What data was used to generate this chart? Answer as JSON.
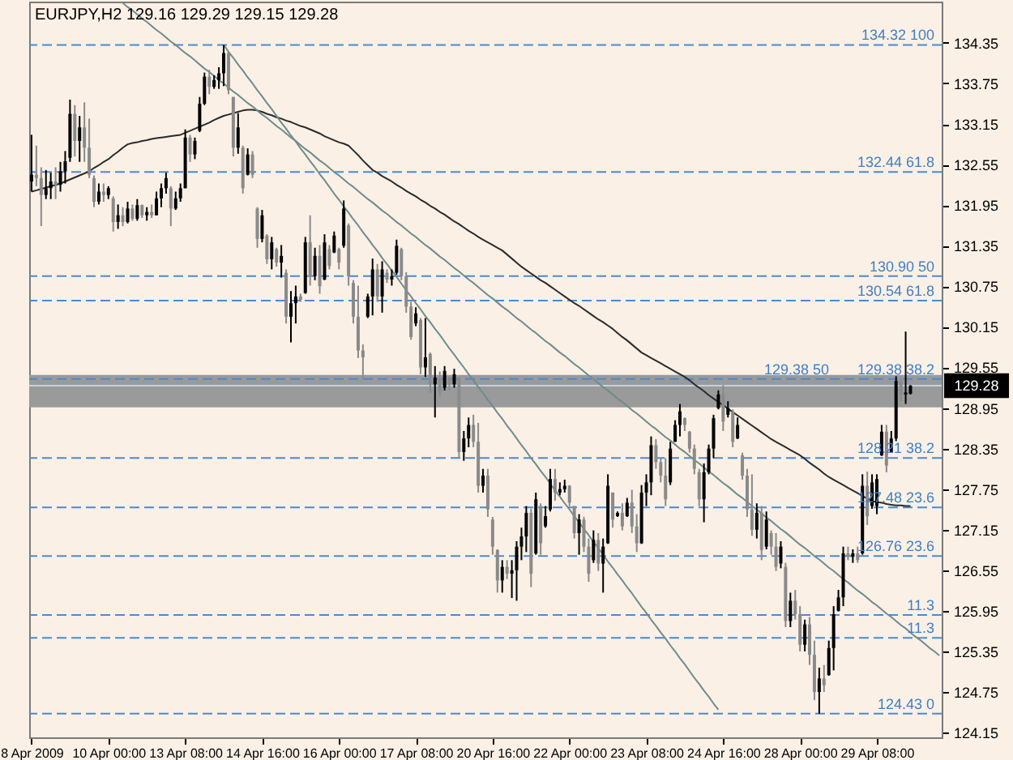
{
  "chart_data": {
    "type": "candlestick",
    "title": "EURJPY,H2 129.16 129.29 129.15 129.28",
    "categories": [
      "8 Apr 2009",
      null,
      null,
      null,
      null,
      null,
      null,
      null,
      null,
      null,
      null,
      null,
      null,
      null,
      null,
      null,
      "10 Apr 00:00",
      null,
      null,
      null,
      null,
      null,
      null,
      null,
      null,
      null,
      null,
      null,
      null,
      null,
      null,
      null,
      "13 Apr 08:00",
      null,
      null,
      null,
      null,
      null,
      null,
      null,
      null,
      null,
      null,
      null,
      null,
      null,
      null,
      null,
      "14 Apr 16:00",
      null,
      null,
      null,
      null,
      null,
      null,
      null,
      null,
      null,
      null,
      null,
      null,
      null,
      null,
      null,
      "16 Apr 00:00",
      null,
      null,
      null,
      null,
      null,
      null,
      null,
      null,
      null,
      null,
      null,
      null,
      null,
      null,
      null,
      "17 Apr 08:00",
      null,
      null,
      null,
      null,
      null,
      null,
      null,
      null,
      null,
      null,
      null,
      null,
      null,
      null,
      null,
      "20 Apr 16:00",
      null,
      null,
      null,
      null,
      null,
      null,
      null,
      null,
      null,
      null,
      null,
      null,
      null,
      null,
      null,
      "22 Apr 00:00",
      null,
      null,
      null,
      null,
      null,
      null,
      null,
      null,
      null,
      null,
      null,
      null,
      null,
      null,
      null,
      "23 Apr 08:00",
      null,
      null,
      null,
      null,
      null,
      null,
      null,
      null,
      null,
      null,
      null,
      null,
      null,
      null,
      null,
      "24 Apr 16:00",
      null,
      null,
      null,
      null,
      null,
      null,
      null,
      null,
      null,
      null,
      null,
      null,
      null,
      null,
      null,
      "28 Apr 00:00",
      null,
      null,
      null,
      null,
      null,
      null,
      null,
      null,
      null,
      null,
      null,
      null,
      null,
      null,
      null,
      "29 Apr 08:00",
      null,
      null,
      null,
      null,
      null,
      null,
      null,
      null,
      null,
      null,
      null,
      null,
      null
    ],
    "ohlc": [
      [
        132.3,
        132.99,
        132.15,
        132.4
      ],
      [
        132.4,
        132.83,
        132.23,
        132.35
      ],
      [
        132.35,
        132.51,
        131.64,
        132.1
      ],
      [
        132.1,
        132.47,
        132.04,
        132.2
      ],
      [
        132.2,
        132.43,
        132.04,
        132.3
      ],
      [
        132.3,
        132.51,
        132.04,
        132.25
      ],
      [
        132.25,
        132.59,
        132.15,
        132.45
      ],
      [
        132.45,
        132.75,
        132.27,
        132.6
      ],
      [
        132.65,
        133.51,
        132.59,
        133.3
      ],
      [
        133.3,
        133.43,
        132.67,
        132.9
      ],
      [
        132.9,
        133.27,
        132.59,
        133.1
      ],
      [
        133.1,
        133.47,
        132.59,
        132.8
      ],
      [
        132.8,
        133.23,
        132.35,
        132.4
      ],
      [
        132.35,
        132.39,
        131.92,
        132.0
      ],
      [
        132.0,
        132.27,
        131.96,
        132.15
      ],
      [
        132.15,
        132.27,
        132.0,
        132.1
      ],
      [
        132.1,
        132.23,
        132.04,
        132.2
      ],
      [
        132.05,
        132.08,
        131.56,
        131.7
      ],
      [
        131.7,
        131.96,
        131.6,
        131.8
      ],
      [
        131.8,
        131.92,
        131.64,
        131.7
      ],
      [
        131.7,
        132.0,
        131.68,
        131.9
      ],
      [
        131.9,
        131.96,
        131.72,
        131.75
      ],
      [
        131.75,
        132.04,
        131.72,
        131.95
      ],
      [
        131.95,
        131.96,
        131.76,
        131.8
      ],
      [
        131.8,
        131.92,
        131.72,
        131.85
      ],
      [
        131.85,
        131.96,
        131.76,
        131.8
      ],
      [
        131.8,
        132.15,
        131.8,
        132.05
      ],
      [
        132.05,
        132.27,
        131.92,
        132.2
      ],
      [
        132.2,
        132.43,
        132.12,
        132.35
      ],
      [
        132.2,
        132.23,
        131.64,
        131.9
      ],
      [
        131.9,
        132.15,
        131.88,
        132.05
      ],
      [
        132.05,
        132.27,
        132.0,
        132.2
      ],
      [
        132.2,
        133.07,
        132.2,
        132.95
      ],
      [
        132.95,
        132.99,
        132.59,
        132.7
      ],
      [
        132.7,
        132.95,
        132.63,
        132.9
      ],
      [
        133.05,
        133.55,
        133.03,
        133.45
      ],
      [
        133.45,
        133.91,
        133.43,
        133.85
      ],
      [
        133.85,
        133.95,
        133.59,
        133.7
      ],
      [
        133.7,
        133.87,
        133.67,
        133.8
      ],
      [
        133.8,
        133.99,
        133.67,
        133.9
      ],
      [
        133.9,
        134.32,
        133.71,
        134.2
      ],
      [
        134.2,
        134.22,
        133.59,
        133.65
      ],
      [
        133.55,
        133.55,
        132.67,
        132.8
      ],
      [
        132.8,
        133.31,
        132.71,
        133.1
      ],
      [
        132.8,
        132.83,
        132.12,
        132.2
      ],
      [
        132.4,
        132.79,
        132.39,
        132.7
      ],
      [
        132.7,
        132.75,
        132.35,
        132.4
      ],
      [
        131.9,
        131.92,
        131.32,
        131.45
      ],
      [
        131.45,
        131.88,
        131.4,
        131.8
      ],
      [
        131.5,
        131.52,
        131.08,
        131.15
      ],
      [
        131.15,
        131.48,
        131.0,
        131.4
      ],
      [
        131.3,
        131.32,
        131.04,
        131.1
      ],
      [
        131.1,
        131.36,
        130.88,
        131.2
      ],
      [
        130.95,
        131.0,
        130.2,
        130.3
      ],
      [
        130.3,
        130.68,
        129.92,
        130.5
      ],
      [
        130.5,
        130.76,
        130.2,
        130.6
      ],
      [
        130.6,
        130.64,
        130.52,
        130.55
      ],
      [
        130.65,
        131.48,
        130.64,
        131.4
      ],
      [
        131.4,
        131.8,
        130.76,
        130.9
      ],
      [
        130.9,
        131.32,
        130.84,
        131.2
      ],
      [
        131.2,
        131.36,
        130.64,
        130.75
      ],
      [
        130.85,
        131.52,
        130.84,
        131.4
      ],
      [
        131.3,
        131.36,
        131.0,
        131.05
      ],
      [
        131.25,
        131.56,
        131.24,
        131.5
      ],
      [
        131.3,
        131.32,
        131.0,
        131.1
      ],
      [
        131.35,
        132.02,
        131.32,
        131.9
      ],
      [
        131.65,
        131.68,
        130.76,
        130.9
      ],
      [
        130.8,
        130.84,
        130.2,
        130.3
      ],
      [
        130.3,
        130.76,
        129.69,
        129.8
      ],
      [
        129.8,
        129.89,
        129.37,
        129.7
      ],
      [
        130.3,
        130.64,
        130.28,
        130.6
      ],
      [
        130.6,
        131.16,
        130.32,
        131.0
      ],
      [
        131.0,
        131.08,
        130.52,
        130.6
      ],
      [
        130.6,
        131.12,
        130.36,
        131.0
      ],
      [
        130.95,
        131.0,
        130.8,
        130.85
      ],
      [
        130.85,
        131.0,
        130.76,
        130.9
      ],
      [
        130.95,
        131.44,
        130.92,
        131.35
      ],
      [
        131.3,
        131.32,
        130.84,
        130.9
      ],
      [
        130.9,
        130.96,
        130.36,
        130.45
      ],
      [
        130.45,
        130.52,
        129.96,
        130.0
      ],
      [
        130.2,
        130.44,
        130.16,
        130.35
      ],
      [
        130.25,
        130.28,
        129.45,
        129.55
      ],
      [
        129.55,
        130.28,
        129.41,
        129.7
      ],
      [
        129.75,
        129.77,
        129.17,
        129.3
      ],
      [
        129.3,
        129.57,
        128.81,
        129.4
      ],
      [
        129.4,
        129.49,
        129.13,
        129.2
      ],
      [
        129.25,
        129.57,
        129.21,
        129.5
      ],
      [
        129.4,
        129.41,
        129.21,
        129.3
      ],
      [
        129.3,
        129.53,
        129.25,
        129.45
      ],
      [
        129.4,
        129.41,
        128.21,
        128.3
      ],
      [
        128.3,
        128.61,
        128.17,
        128.5
      ],
      [
        128.5,
        128.81,
        128.37,
        128.7
      ],
      [
        128.7,
        128.85,
        128.37,
        128.45
      ],
      [
        128.45,
        128.73,
        127.7,
        127.8
      ],
      [
        127.8,
        128.05,
        127.7,
        127.95
      ],
      [
        127.95,
        128.05,
        127.34,
        127.45
      ],
      [
        127.3,
        127.34,
        126.78,
        126.9
      ],
      [
        126.85,
        126.86,
        126.22,
        126.4
      ],
      [
        126.4,
        126.7,
        126.22,
        126.6
      ],
      [
        126.6,
        126.7,
        126.42,
        126.5
      ],
      [
        126.5,
        126.7,
        126.14,
        126.55
      ],
      [
        126.55,
        126.98,
        126.1,
        126.9
      ],
      [
        126.9,
        127.18,
        126.7,
        127.05
      ],
      [
        127.05,
        127.5,
        126.82,
        127.4
      ],
      [
        127.4,
        127.46,
        126.3,
        126.5
      ],
      [
        126.8,
        127.7,
        126.78,
        127.6
      ],
      [
        127.5,
        127.54,
        126.78,
        126.95
      ],
      [
        127.2,
        127.5,
        127.18,
        127.35
      ],
      [
        127.45,
        128.05,
        127.42,
        127.9
      ],
      [
        127.9,
        128.05,
        127.58,
        127.7
      ],
      [
        127.7,
        127.85,
        127.66,
        127.75
      ],
      [
        127.75,
        127.89,
        127.7,
        127.8
      ],
      [
        127.8,
        127.81,
        127.5,
        127.55
      ],
      [
        127.5,
        127.5,
        127.02,
        127.1
      ],
      [
        127.1,
        127.38,
        126.78,
        127.3
      ],
      [
        127.3,
        127.34,
        126.82,
        126.9
      ],
      [
        126.9,
        127.02,
        126.38,
        126.5
      ],
      [
        126.7,
        127.14,
        126.66,
        127.0
      ],
      [
        127.0,
        127.1,
        126.54,
        126.65
      ],
      [
        126.65,
        127.02,
        126.22,
        126.9
      ],
      [
        126.95,
        127.97,
        126.94,
        127.8
      ],
      [
        127.7,
        127.7,
        127.18,
        127.3
      ],
      [
        127.35,
        127.42,
        127.34,
        127.4
      ],
      [
        127.4,
        127.54,
        127.14,
        127.2
      ],
      [
        127.35,
        127.62,
        127.34,
        127.55
      ],
      [
        127.55,
        127.74,
        127.1,
        127.2
      ],
      [
        127.2,
        127.38,
        126.82,
        126.95
      ],
      [
        126.95,
        127.81,
        126.94,
        127.7
      ],
      [
        127.7,
        127.97,
        127.5,
        127.85
      ],
      [
        127.85,
        128.53,
        127.66,
        128.4
      ],
      [
        128.4,
        128.49,
        128.05,
        128.15
      ],
      [
        128.15,
        128.21,
        127.85,
        127.95
      ],
      [
        127.95,
        128.21,
        127.5,
        127.6
      ],
      [
        127.85,
        128.45,
        127.81,
        128.35
      ],
      [
        128.45,
        128.77,
        128.45,
        128.7
      ],
      [
        128.7,
        129.01,
        128.53,
        128.9
      ],
      [
        128.8,
        128.81,
        128.61,
        128.7
      ],
      [
        128.6,
        128.61,
        128.29,
        128.35
      ],
      [
        128.35,
        128.41,
        127.97,
        128.05
      ],
      [
        128.0,
        128.05,
        127.5,
        127.6
      ],
      [
        127.6,
        128.13,
        127.26,
        128.0
      ],
      [
        128.0,
        128.41,
        127.97,
        128.35
      ],
      [
        128.35,
        128.85,
        128.21,
        128.8
      ],
      [
        128.95,
        129.21,
        128.93,
        129.15
      ],
      [
        129.15,
        129.29,
        128.61,
        128.75
      ],
      [
        128.85,
        129.05,
        128.81,
        128.95
      ],
      [
        128.9,
        128.93,
        128.37,
        128.45
      ],
      [
        128.5,
        128.81,
        128.49,
        128.7
      ],
      [
        128.25,
        128.29,
        127.89,
        127.95
      ],
      [
        127.95,
        128.05,
        127.34,
        127.45
      ],
      [
        127.45,
        127.97,
        127.06,
        127.15
      ],
      [
        127.15,
        127.54,
        127.02,
        127.4
      ],
      [
        127.4,
        127.5,
        126.7,
        126.85
      ],
      [
        126.9,
        127.42,
        126.86,
        127.3
      ],
      [
        127.1,
        127.14,
        126.78,
        126.9
      ],
      [
        126.9,
        127.1,
        126.54,
        126.6
      ],
      [
        126.65,
        126.98,
        126.58,
        126.9
      ],
      [
        126.6,
        126.66,
        125.71,
        125.8
      ],
      [
        125.8,
        126.22,
        125.71,
        126.1
      ],
      [
        126.1,
        126.26,
        125.82,
        125.9
      ],
      [
        125.9,
        126.02,
        125.35,
        125.45
      ],
      [
        125.45,
        125.82,
        125.35,
        125.75
      ],
      [
        125.75,
        125.86,
        125.15,
        125.3
      ],
      [
        125.3,
        125.51,
        124.63,
        124.75
      ],
      [
        124.75,
        125.11,
        124.43,
        124.95
      ],
      [
        124.95,
        125.15,
        124.75,
        124.85
      ],
      [
        125.0,
        125.51,
        124.99,
        125.4
      ],
      [
        125.4,
        126.02,
        125.07,
        125.9
      ],
      [
        125.95,
        126.26,
        125.94,
        126.15
      ],
      [
        126.15,
        126.9,
        126.02,
        126.8
      ],
      [
        126.8,
        126.9,
        126.7,
        126.75
      ],
      [
        126.75,
        126.86,
        126.66,
        126.8
      ],
      [
        126.8,
        126.9,
        126.66,
        126.7
      ],
      [
        126.8,
        127.97,
        126.78,
        127.8
      ],
      [
        127.8,
        128.01,
        127.22,
        127.35
      ],
      [
        127.5,
        127.97,
        127.46,
        127.85
      ],
      [
        127.5,
        127.97,
        127.38,
        127.9
      ],
      [
        128.25,
        128.7,
        128.24,
        128.6
      ],
      [
        128.6,
        128.7,
        128.0,
        128.1
      ],
      [
        128.3,
        128.61,
        128.29,
        128.5
      ],
      [
        128.5,
        129.42,
        128.46,
        129.35
      ],
      [
        129.35,
        129.41,
        129.05,
        129.15
      ],
      [
        129.15,
        130.08,
        129.01,
        129.18
      ],
      [
        129.16,
        129.29,
        129.15,
        129.28
      ],
      null,
      null,
      null,
      null,
      null,
      null
    ],
    "colors": [
      "#000000",
      "#8a8a8a",
      "#8a8a8a",
      "#000000",
      "#000000",
      "#8a8a8a",
      "#000000",
      "#000000",
      "#000000",
      "#8a8a8a",
      "#000000",
      "#8a8a8a",
      "#8a8a8a",
      "#8a8a8a",
      "#000000",
      "#8a8a8a",
      "#000000",
      "#8a8a8a",
      "#000000",
      "#8a8a8a",
      "#000000",
      "#8a8a8a",
      "#000000",
      "#8a8a8a",
      "#000000",
      "#8a8a8a",
      "#000000",
      "#000000",
      "#000000",
      "#8a8a8a",
      "#000000",
      "#000000",
      "#000000",
      "#8a8a8a",
      "#000000",
      "#000000",
      "#000000",
      "#8a8a8a",
      "#000000",
      "#000000",
      "#000000",
      "#8a8a8a",
      "#8a8a8a",
      "#000000",
      "#8a8a8a",
      "#000000",
      "#8a8a8a",
      "#8a8a8a",
      "#000000",
      "#8a8a8a",
      "#000000",
      "#8a8a8a",
      "#000000",
      "#8a8a8a",
      "#000000",
      "#000000",
      "#8a8a8a",
      "#000000",
      "#8a8a8a",
      "#000000",
      "#8a8a8a",
      "#000000",
      "#8a8a8a",
      "#000000",
      "#8a8a8a",
      "#000000",
      "#8a8a8a",
      "#8a8a8a",
      "#8a8a8a",
      "#8a8a8a",
      "#000000",
      "#000000",
      "#8a8a8a",
      "#000000",
      "#8a8a8a",
      "#000000",
      "#000000",
      "#8a8a8a",
      "#8a8a8a",
      "#8a8a8a",
      "#000000",
      "#8a8a8a",
      "#000000",
      "#8a8a8a",
      "#000000",
      "#8a8a8a",
      "#000000",
      "#8a8a8a",
      "#000000",
      "#8a8a8a",
      "#000000",
      "#000000",
      "#8a8a8a",
      "#8a8a8a",
      "#000000",
      "#8a8a8a",
      "#8a8a8a",
      "#8a8a8a",
      "#000000",
      "#8a8a8a",
      "#000000",
      "#000000",
      "#000000",
      "#000000",
      "#8a8a8a",
      "#000000",
      "#8a8a8a",
      "#000000",
      "#000000",
      "#8a8a8a",
      "#000000",
      "#000000",
      "#8a8a8a",
      "#8a8a8a",
      "#000000",
      "#8a8a8a",
      "#8a8a8a",
      "#000000",
      "#8a8a8a",
      "#000000",
      "#000000",
      "#8a8a8a",
      "#000000",
      "#8a8a8a",
      "#000000",
      "#8a8a8a",
      "#8a8a8a",
      "#000000",
      "#000000",
      "#000000",
      "#8a8a8a",
      "#8a8a8a",
      "#8a8a8a",
      "#000000",
      "#000000",
      "#000000",
      "#8a8a8a",
      "#8a8a8a",
      "#8a8a8a",
      "#8a8a8a",
      "#000000",
      "#000000",
      "#000000",
      "#000000",
      "#8a8a8a",
      "#000000",
      "#8a8a8a",
      "#000000",
      "#8a8a8a",
      "#8a8a8a",
      "#8a8a8a",
      "#000000",
      "#8a8a8a",
      "#000000",
      "#8a8a8a",
      "#8a8a8a",
      "#000000",
      "#8a8a8a",
      "#000000",
      "#8a8a8a",
      "#8a8a8a",
      "#000000",
      "#8a8a8a",
      "#8a8a8a",
      "#000000",
      "#8a8a8a",
      "#000000",
      "#000000",
      "#000000",
      "#000000",
      "#8a8a8a",
      "#000000",
      "#8a8a8a",
      "#000000",
      "#8a8a8a",
      "#000000",
      "#000000",
      "#000000",
      "#8a8a8a",
      "#000000",
      "#000000",
      "#8a8a8a",
      "#000000",
      "#000000",
      null,
      null,
      null,
      null,
      null,
      null
    ],
    "series": [
      {
        "type": "line",
        "color": "#2b2b2b",
        "values": [
          132.15,
          132.17,
          132.19,
          132.21,
          132.23,
          132.25,
          132.27,
          132.3,
          132.33,
          132.36,
          132.39,
          132.42,
          132.45,
          132.5,
          132.54,
          132.59,
          132.63,
          132.69,
          132.74,
          132.8,
          132.85,
          132.87,
          132.88,
          132.9,
          132.91,
          132.93,
          132.94,
          132.95,
          132.96,
          132.97,
          132.98,
          132.99,
          133.02,
          133.05,
          133.08,
          133.11,
          133.14,
          133.17,
          133.21,
          133.24,
          133.27,
          133.29,
          133.31,
          133.33,
          133.35,
          133.36,
          133.36,
          133.35,
          133.33,
          133.3,
          133.28,
          133.25,
          133.23,
          133.2,
          133.18,
          133.15,
          133.12,
          133.1,
          133.07,
          133.04,
          133.01,
          132.97,
          132.94,
          132.91,
          132.88,
          132.86,
          132.83,
          132.76,
          132.69,
          132.61,
          132.54,
          132.47,
          132.43,
          132.38,
          132.34,
          132.3,
          132.25,
          132.21,
          132.16,
          132.12,
          132.08,
          132.03,
          131.99,
          131.94,
          131.9,
          131.85,
          131.81,
          131.76,
          131.71,
          131.67,
          131.62,
          131.57,
          131.53,
          131.48,
          131.44,
          131.4,
          131.36,
          131.32,
          131.28,
          131.22,
          131.16,
          131.1,
          131.04,
          130.99,
          130.94,
          130.89,
          130.84,
          130.8,
          130.75,
          130.7,
          130.65,
          130.6,
          130.55,
          130.5,
          130.46,
          130.41,
          130.36,
          130.31,
          130.26,
          130.22,
          130.17,
          130.12,
          130.06,
          130.0,
          129.95,
          129.89,
          129.83,
          129.77,
          129.73,
          129.69,
          129.65,
          129.61,
          129.57,
          129.53,
          129.49,
          129.45,
          129.41,
          129.36,
          129.3,
          129.25,
          129.2,
          129.14,
          129.09,
          129.04,
          128.99,
          128.94,
          128.89,
          128.84,
          128.79,
          128.74,
          128.69,
          128.64,
          128.59,
          128.54,
          128.49,
          128.45,
          128.41,
          128.37,
          128.33,
          128.29,
          128.25,
          128.2,
          128.14,
          128.09,
          128.04,
          127.98,
          127.93,
          127.89,
          127.85,
          127.81,
          127.77,
          127.73,
          127.69,
          127.65,
          127.61,
          127.57,
          127.56,
          127.55,
          127.53,
          127.52,
          127.51,
          127.51,
          127.5,
          127.5,
          null,
          null,
          null,
          null,
          null,
          null
        ]
      },
      {
        "type": "line",
        "color": "#6f8c8c",
        "values": [
          null,
          null,
          null,
          null,
          null,
          null,
          null,
          null,
          null,
          null,
          null,
          null,
          null,
          null,
          null,
          null,
          null,
          null,
          null,
          null,
          null,
          null,
          null,
          null,
          null,
          null,
          null,
          null,
          null,
          null,
          null,
          null,
          null,
          null,
          null,
          null,
          null,
          null,
          null,
          null,
          134.32,
          134.22,
          134.13,
          134.03,
          133.94,
          133.84,
          133.75,
          133.65,
          133.56,
          133.46,
          133.37,
          133.27,
          133.17,
          133.08,
          132.98,
          132.89,
          132.79,
          132.7,
          132.6,
          132.51,
          132.41,
          132.32,
          132.22,
          132.12,
          132.03,
          131.93,
          131.84,
          131.74,
          131.65,
          131.55,
          131.46,
          131.36,
          131.27,
          131.17,
          131.08,
          130.98,
          130.89,
          130.79,
          130.69,
          130.6,
          130.5,
          130.41,
          130.31,
          130.22,
          130.12,
          130.03,
          129.93,
          129.83,
          129.74,
          129.64,
          129.55,
          129.45,
          129.36,
          129.26,
          129.17,
          129.07,
          128.98,
          128.88,
          128.79,
          128.69,
          128.6,
          128.5,
          128.4,
          128.31,
          128.21,
          128.12,
          128.02,
          127.93,
          127.83,
          127.73,
          127.64,
          127.54,
          127.45,
          127.35,
          127.26,
          127.16,
          127.07,
          126.97,
          126.88,
          126.78,
          126.68,
          126.59,
          126.49,
          126.4,
          126.3,
          126.21,
          126.11,
          126.01,
          125.92,
          125.82,
          125.73,
          125.63,
          125.54,
          125.44,
          125.35,
          125.25,
          125.16,
          125.06,
          124.96,
          124.87,
          124.77,
          124.68,
          124.58,
          124.49,
          null,
          null,
          null,
          null,
          null,
          null,
          null,
          null,
          null,
          null,
          null,
          null,
          null,
          null,
          null,
          null,
          null,
          null,
          null,
          null,
          null,
          null,
          null,
          null,
          null,
          null,
          null,
          null,
          null,
          null,
          null,
          null,
          null,
          null,
          null,
          null,
          null,
          null,
          null,
          null,
          null,
          null,
          null,
          null,
          null,
          null
        ]
      },
      {
        "type": "line",
        "color": "#6f8c8c",
        "values": [
          null,
          null,
          null,
          null,
          null,
          null,
          null,
          null,
          null,
          null,
          null,
          null,
          null,
          null,
          null,
          null,
          null,
          null,
          null,
          134.94,
          134.88,
          134.83,
          134.77,
          134.71,
          134.66,
          134.6,
          134.54,
          134.49,
          134.43,
          134.37,
          134.32,
          134.26,
          134.2,
          134.15,
          134.09,
          134.03,
          133.97,
          133.92,
          133.86,
          133.8,
          133.75,
          133.69,
          133.63,
          133.58,
          133.52,
          133.46,
          133.41,
          133.35,
          133.29,
          133.24,
          133.18,
          133.12,
          133.07,
          133.01,
          132.95,
          132.9,
          132.84,
          132.78,
          132.73,
          132.67,
          132.61,
          132.56,
          132.5,
          132.44,
          132.39,
          132.33,
          132.27,
          132.22,
          132.16,
          132.1,
          132.04,
          131.99,
          131.93,
          131.87,
          131.82,
          131.76,
          131.7,
          131.65,
          131.59,
          131.53,
          131.48,
          131.42,
          131.36,
          131.31,
          131.25,
          131.19,
          131.14,
          131.08,
          131.02,
          130.97,
          130.91,
          130.85,
          130.8,
          130.74,
          130.68,
          130.62,
          130.57,
          130.51,
          130.45,
          130.4,
          130.34,
          130.28,
          130.23,
          130.17,
          130.11,
          130.06,
          130.0,
          129.94,
          129.89,
          129.83,
          129.77,
          129.72,
          129.66,
          129.6,
          129.55,
          129.49,
          129.43,
          129.38,
          129.32,
          129.26,
          129.21,
          129.15,
          129.09,
          129.04,
          128.98,
          128.92,
          128.87,
          128.81,
          128.75,
          128.69,
          128.64,
          128.58,
          128.52,
          128.47,
          128.41,
          128.35,
          128.3,
          128.24,
          128.18,
          128.13,
          128.07,
          128.01,
          127.96,
          127.9,
          127.84,
          127.79,
          127.73,
          127.67,
          127.62,
          127.56,
          127.5,
          127.45,
          127.39,
          127.33,
          127.28,
          127.22,
          127.16,
          127.11,
          127.05,
          126.99,
          126.93,
          126.88,
          126.82,
          126.76,
          126.71,
          126.65,
          126.59,
          126.54,
          126.48,
          126.42,
          126.37,
          126.31,
          126.25,
          126.2,
          126.14,
          126.08,
          126.03,
          125.97,
          125.91,
          125.86,
          125.8,
          125.74,
          125.69,
          125.63,
          125.57,
          125.52,
          125.46,
          125.4,
          125.35,
          125.29
        ]
      }
    ],
    "bands": [
      {
        "axis": "y",
        "from": 128.96,
        "to": 129.44,
        "color": "#9a9a9a"
      }
    ],
    "ref_lines": [
      {
        "axis": "y",
        "value": 134.32,
        "color": "#4a8bd0",
        "line_style": "dashed"
      },
      {
        "axis": "y",
        "value": 132.44,
        "color": "#4a8bd0",
        "line_style": "dashed"
      },
      {
        "axis": "y",
        "value": 130.9,
        "color": "#4a8bd0",
        "line_style": "dashed"
      },
      {
        "axis": "y",
        "value": 130.54,
        "color": "#4a8bd0",
        "line_style": "dashed"
      },
      {
        "axis": "y",
        "value": 129.38,
        "color": "#4a8bd0",
        "line_style": "dashed"
      },
      {
        "axis": "y",
        "value": 128.21,
        "color": "#4a8bd0",
        "line_style": "dashed"
      },
      {
        "axis": "y",
        "value": 127.48,
        "color": "#4a8bd0",
        "line_style": "dashed"
      },
      {
        "axis": "y",
        "value": 126.76,
        "color": "#4a8bd0",
        "line_style": "dashed"
      },
      {
        "axis": "y",
        "value": 125.89,
        "color": "#4a8bd0",
        "line_style": "dashed"
      },
      {
        "axis": "y",
        "value": 125.55,
        "color": "#4a8bd0",
        "line_style": "dashed"
      },
      {
        "axis": "y",
        "value": 124.43,
        "color": "#4a8bd0",
        "line_style": "dashed"
      },
      {
        "axis": "y",
        "value": 129.28,
        "label": "129.28",
        "color": "#c8d0da",
        "line_style": "solid"
      }
    ],
    "annotations": [
      {
        "text": "134.32 100",
        "y": 134.32
      },
      {
        "text": "132.44 61.8",
        "y": 132.44
      },
      {
        "text": "130.90 50",
        "y": 130.9
      },
      {
        "text": "130.54 61.8",
        "y": 130.54
      },
      {
        "text": "129.38 38.2",
        "y": 129.38
      },
      {
        "text": "129.38 50",
        "y": 129.38
      },
      {
        "text": "128.21 38.2",
        "y": 128.21
      },
      {
        "text": "127.48 23.6",
        "y": 127.48
      },
      {
        "text": "126.76 23.6",
        "y": 126.76
      },
      {
        "text": "11.3",
        "y": 125.89
      },
      {
        "text": "11.3",
        "y": 125.55
      },
      {
        "text": "124.43 0",
        "y": 124.43
      }
    ],
    "ylim": [
      124.08,
      134.96
    ],
    "yticks": [
      124.15,
      124.75,
      125.35,
      125.95,
      126.55,
      127.15,
      127.75,
      128.35,
      128.95,
      129.55,
      130.15,
      130.75,
      131.35,
      131.95,
      132.55,
      133.15,
      133.75,
      134.35
    ],
    "grid": false
  }
}
